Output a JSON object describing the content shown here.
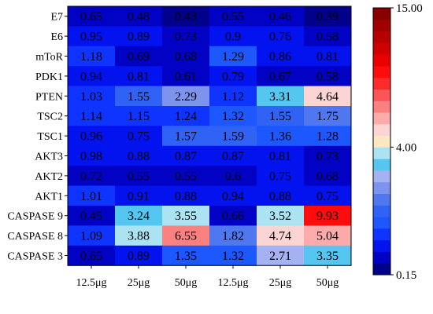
{
  "chart_data": {
    "type": "heatmap",
    "title": "",
    "xlabel": "",
    "ylabel": "",
    "x_categories": [
      "12.5μg",
      "25μg",
      "50μg",
      "12.5μg",
      "25μg",
      "50μg"
    ],
    "y_categories": [
      "E7",
      "E6",
      "mToR",
      "PDK1",
      "PTEN",
      "TSC2",
      "TSC1",
      "AKT3",
      "AKT2",
      "AKT1",
      "CASPASE 9",
      "CASPASE 8",
      "CASPASE 3"
    ],
    "values": [
      [
        0.65,
        0.48,
        0.43,
        0.55,
        0.46,
        0.39
      ],
      [
        0.95,
        0.89,
        0.73,
        0.9,
        0.76,
        0.58
      ],
      [
        1.18,
        0.69,
        0.68,
        1.29,
        0.86,
        0.81
      ],
      [
        0.94,
        0.81,
        0.61,
        0.79,
        0.67,
        0.58
      ],
      [
        1.03,
        1.55,
        2.29,
        1.12,
        3.31,
        4.64
      ],
      [
        1.14,
        1.15,
        1.24,
        1.32,
        1.55,
        1.75
      ],
      [
        0.96,
        0.75,
        1.57,
        1.59,
        1.36,
        1.28
      ],
      [
        0.98,
        0.88,
        0.87,
        0.87,
        0.81,
        0.73
      ],
      [
        0.72,
        0.55,
        0.55,
        0.6,
        0.75,
        0.68
      ],
      [
        1.01,
        0.91,
        0.88,
        0.94,
        0.88,
        0.75
      ],
      [
        0.45,
        3.24,
        3.55,
        0.66,
        3.52,
        9.93
      ],
      [
        1.09,
        3.88,
        6.55,
        1.82,
        4.74,
        5.04
      ],
      [
        0.65,
        0.89,
        1.35,
        1.32,
        2.71,
        3.35
      ]
    ],
    "value_labels": [
      [
        "0.65",
        "0.48",
        "0.43",
        "0.55",
        "0.46",
        "0.39"
      ],
      [
        "0.95",
        "0.89",
        "0.73",
        "0.9",
        "0.76",
        "0.58"
      ],
      [
        "1.18",
        "0.69",
        "0.68",
        "1.29",
        "0.86",
        "0.81"
      ],
      [
        "0.94",
        "0.81",
        "0.61",
        "0.79",
        "0.67",
        "0.58"
      ],
      [
        "1.03",
        "1.55",
        "2.29",
        "1.12",
        "3.31",
        "4.64"
      ],
      [
        "1.14",
        "1.15",
        "1.24",
        "1.32",
        "1.55",
        "1.75"
      ],
      [
        "0.96",
        "0.75",
        "1.57",
        "1.59",
        "1.36",
        "1.28"
      ],
      [
        "0.98",
        "0.88",
        "0.87",
        "0.87",
        "0.81",
        "0.73"
      ],
      [
        "0.72",
        "0.55",
        "0.55",
        "0.6",
        "0.75",
        "0.68"
      ],
      [
        "1.01",
        "0.91",
        "0.88",
        "0.94",
        "0.88",
        "0.75"
      ],
      [
        "0.45",
        "3.24",
        "3.55",
        "0.66",
        "3.52",
        "9.93"
      ],
      [
        "1.09",
        "3.88",
        "6.55",
        "1.82",
        "4.74",
        "5.04"
      ],
      [
        "0.65",
        "0.89",
        "1.35",
        "1.32",
        "2.71",
        "3.35"
      ]
    ],
    "colorbar": {
      "ticks": [
        0.15,
        4.0,
        15.0
      ],
      "tick_labels": [
        "0.15",
        "4.00",
        "15.00"
      ],
      "levels": [
        0.15,
        0.45,
        0.75,
        1.0,
        1.25,
        1.5,
        1.75,
        2.0,
        2.5,
        3.0,
        3.5,
        4.0,
        4.5,
        5.0,
        6.0,
        7.0,
        8.0,
        9.0,
        10.0,
        11.0,
        12.0,
        13.0,
        14.0,
        15.0
      ],
      "colors": [
        "#01018c",
        "#0202c4",
        "#0313ef",
        "#1034ff",
        "#1d57ff",
        "#3063f5",
        "#4f78f0",
        "#7d93ee",
        "#a4b2f2",
        "#54c6f0",
        "#abe3f2",
        "#fde6c0",
        "#fdd4d4",
        "#fcaaaa",
        "#fb8080",
        "#fc5555",
        "#fe2a2a",
        "#fe0b0b",
        "#ea0000",
        "#d00000",
        "#b80000",
        "#a00000",
        "#8a0000"
      ]
    },
    "grid": false,
    "legend": "colorbar-right"
  }
}
